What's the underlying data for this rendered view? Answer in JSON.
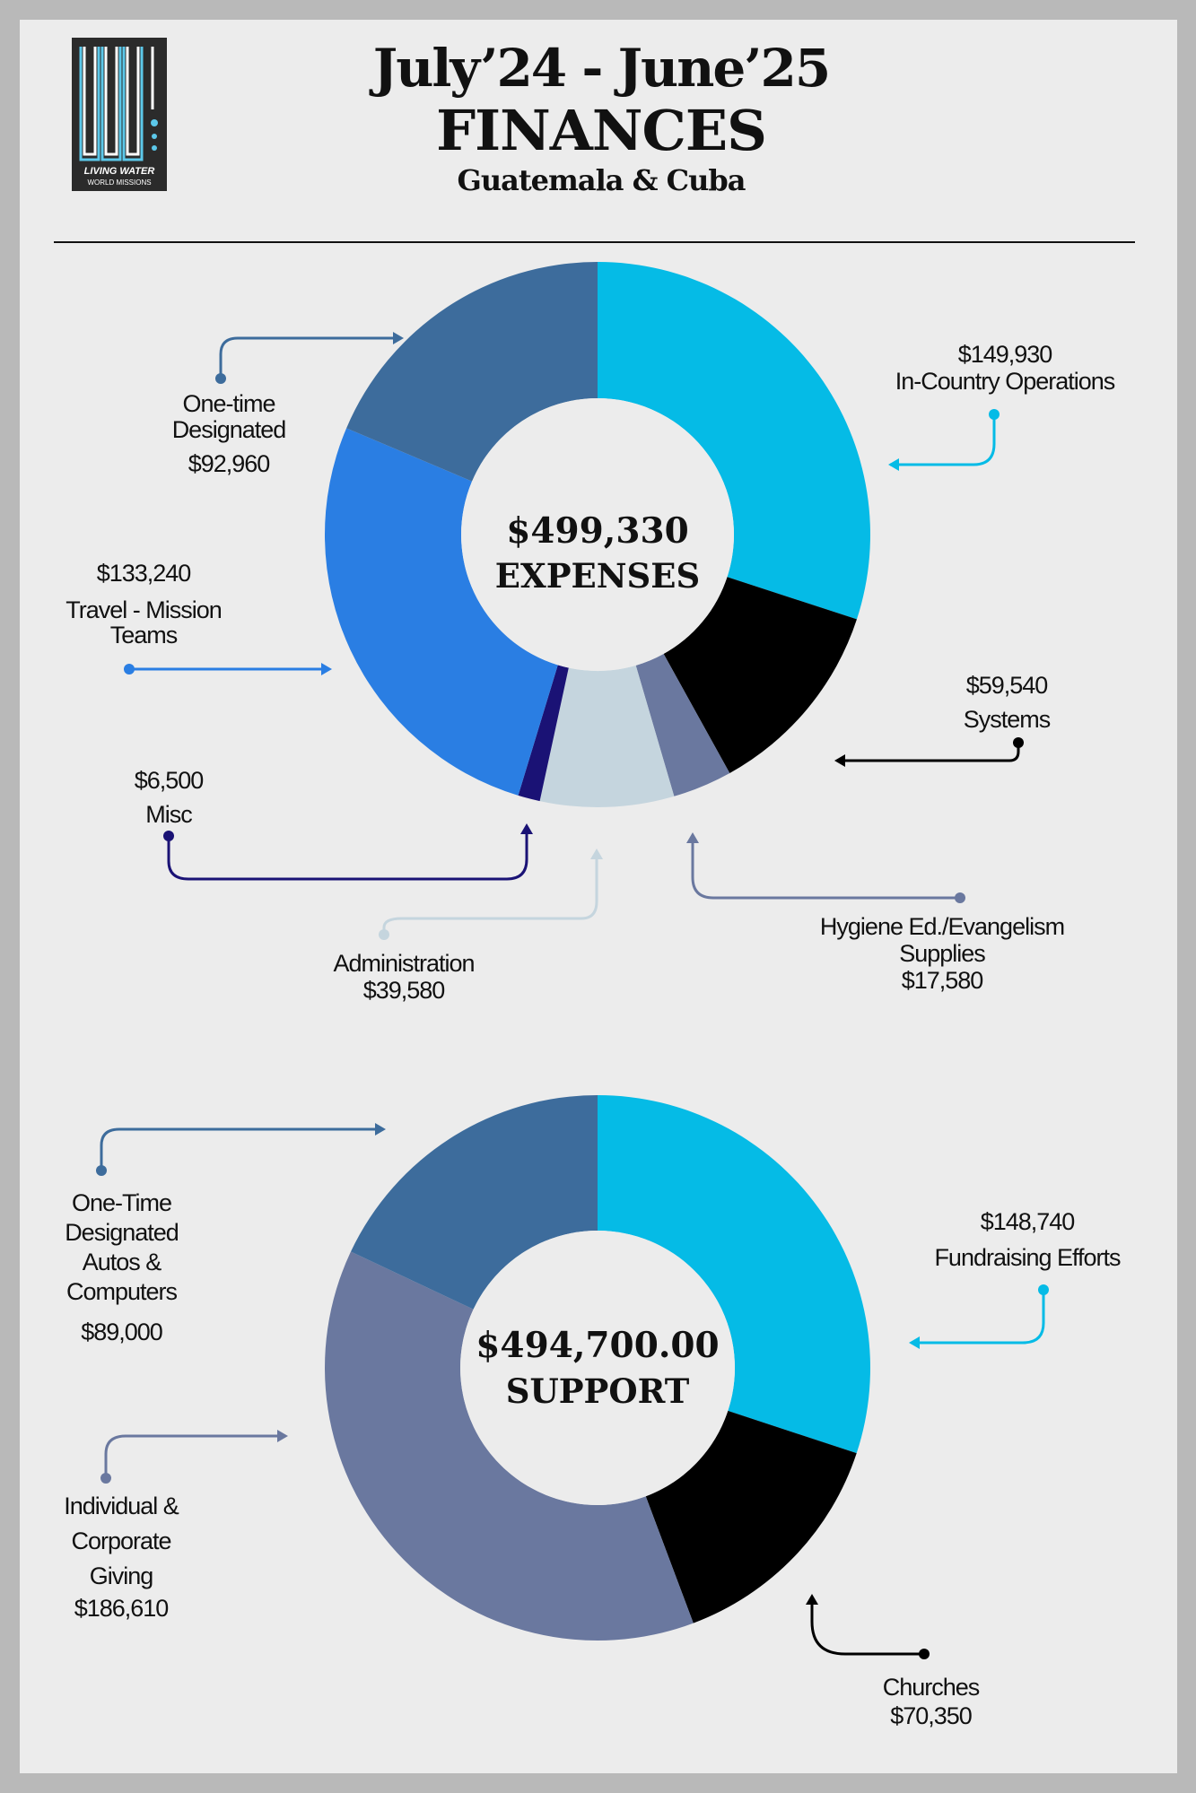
{
  "header": {
    "title_line1": "July’24 - June’25",
    "title_line2": "FINANCES",
    "subtitle": "Guatemala & Cuba",
    "logo_text_line1": "LIVING WATER",
    "logo_text_line2": "WORLD MISSIONS"
  },
  "colors": {
    "bright_cyan": "#05bbe6",
    "black": "#000000",
    "slate_purple": "#6a789f",
    "light_blue_gray": "#c5d5de",
    "navy": "#1a1275",
    "blue": "#2a7ee3",
    "steel_blue": "#3d6c9c",
    "background": "#ececec"
  },
  "chart_data": [
    {
      "type": "pie",
      "variant": "donut",
      "center_value": "$499,330",
      "center_label": "EXPENSES",
      "series": [
        {
          "name": "In-Country Operations",
          "label": "$149,930",
          "value": 149930,
          "color": "#05bbe6"
        },
        {
          "name": "Systems",
          "label": "$59,540",
          "value": 59540,
          "color": "#000000"
        },
        {
          "name": "Hygiene Ed./Evangelism Supplies",
          "label": "$17,580",
          "value": 17580,
          "color": "#6a789f"
        },
        {
          "name": "Administration",
          "label": "$39,580",
          "value": 39580,
          "color": "#c5d5de"
        },
        {
          "name": "Misc",
          "label": "$6,500",
          "value": 6500,
          "color": "#1a1275"
        },
        {
          "name": "Travel - Mission Teams",
          "label": "$133,240",
          "value": 133240,
          "color": "#2a7ee3"
        },
        {
          "name": "One-time Designated",
          "label": "$92,960",
          "value": 92960,
          "color": "#3d6c9c"
        }
      ]
    },
    {
      "type": "pie",
      "variant": "donut",
      "center_value": "$494,700.00",
      "center_label": "SUPPORT",
      "series": [
        {
          "name": "Fundraising Efforts",
          "label": "$148,740",
          "value": 148740,
          "color": "#05bbe6"
        },
        {
          "name": "Churches",
          "label": "$70,350",
          "value": 70350,
          "color": "#000000"
        },
        {
          "name": "Individual & Corporate Giving",
          "label": "$186,610",
          "value": 186610,
          "color": "#6a789f"
        },
        {
          "name": "One-Time Designated Autos & Computers",
          "label": "$89,000",
          "value": 89000,
          "color": "#3d6c9c"
        }
      ]
    }
  ],
  "labels": {
    "in_country_value": "$149,930",
    "in_country_name": "In-Country Operations",
    "systems_value": "$59,540",
    "systems_name": "Systems",
    "hygiene_name_1": "Hygiene Ed./Evangelism",
    "hygiene_name_2": "Supplies",
    "hygiene_value": "$17,580",
    "admin_name": "Administration",
    "admin_value": "$39,580",
    "misc_value": "$6,500",
    "misc_name": "Misc",
    "travel_value": "$133,240",
    "travel_name_1": "Travel - Mission",
    "travel_name_2": "Teams",
    "onetime_name_1": "One-time",
    "onetime_name_2": "Designated",
    "onetime_value": "$92,960",
    "fund_value": "$148,740",
    "fund_name": "Fundraising Efforts",
    "churches_name": "Churches",
    "churches_value": "$70,350",
    "indiv_name_1": "Individual &",
    "indiv_name_2": "Corporate",
    "indiv_name_3": "Giving",
    "indiv_value": "$186,610",
    "autos_name_1": "One-Time",
    "autos_name_2": "Designated",
    "autos_name_3": "Autos &",
    "autos_name_4": "Computers",
    "autos_value": "$89,000"
  }
}
